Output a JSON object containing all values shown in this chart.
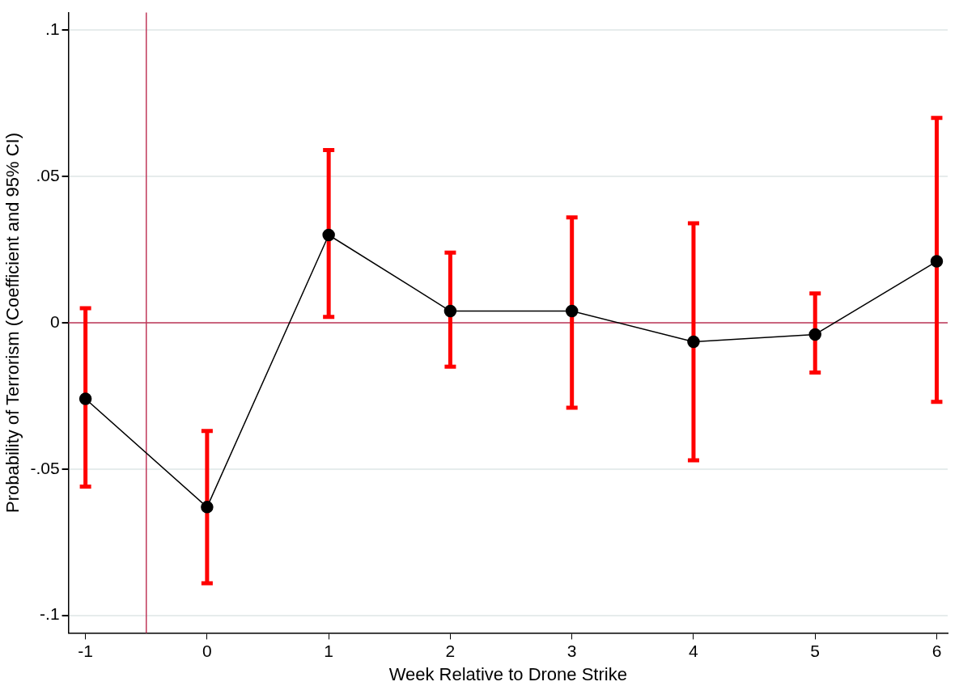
{
  "chart_data": {
    "type": "line",
    "xlabel": "Week Relative to Drone Strike",
    "ylabel": "Probability of Terrorism (Coefficient and 95% CI)",
    "x": [
      -1,
      0,
      1,
      2,
      3,
      4,
      5,
      6
    ],
    "series": [
      {
        "color": "#000000",
        "values": [
          -0.026,
          -0.063,
          0.03,
          0.004,
          0.004,
          -0.0065,
          -0.004,
          0.021
        ],
        "errors": [
          [
            -0.056,
            0.005
          ],
          [
            -0.089,
            -0.037
          ],
          [
            0.002,
            0.059
          ],
          [
            -0.015,
            0.024
          ],
          [
            -0.029,
            0.036
          ],
          [
            -0.047,
            0.034
          ],
          [
            -0.017,
            0.01
          ],
          [
            -0.027,
            0.07
          ]
        ]
      }
    ],
    "xlim": [
      -1.14,
      6.09
    ],
    "xticks": [
      -1,
      0,
      1,
      2,
      3,
      4,
      5,
      6
    ],
    "ylim": [
      -0.106,
      0.106
    ],
    "yticks": [
      {
        "value": -0.1,
        "label": "-.1"
      },
      {
        "value": -0.05,
        "label": "-.05"
      },
      {
        "value": 0,
        "label": "0"
      },
      {
        "value": 0.05,
        "label": ".05"
      },
      {
        "value": 0.1,
        "label": ".1"
      }
    ],
    "ref_lines": [
      {
        "axis": "y",
        "value": 0,
        "color": "#c0395a"
      },
      {
        "axis": "x",
        "value": -0.5,
        "color": "#c0395a"
      }
    ],
    "grid": "y",
    "legend": false,
    "marker": "circle",
    "line_style": "solid"
  }
}
